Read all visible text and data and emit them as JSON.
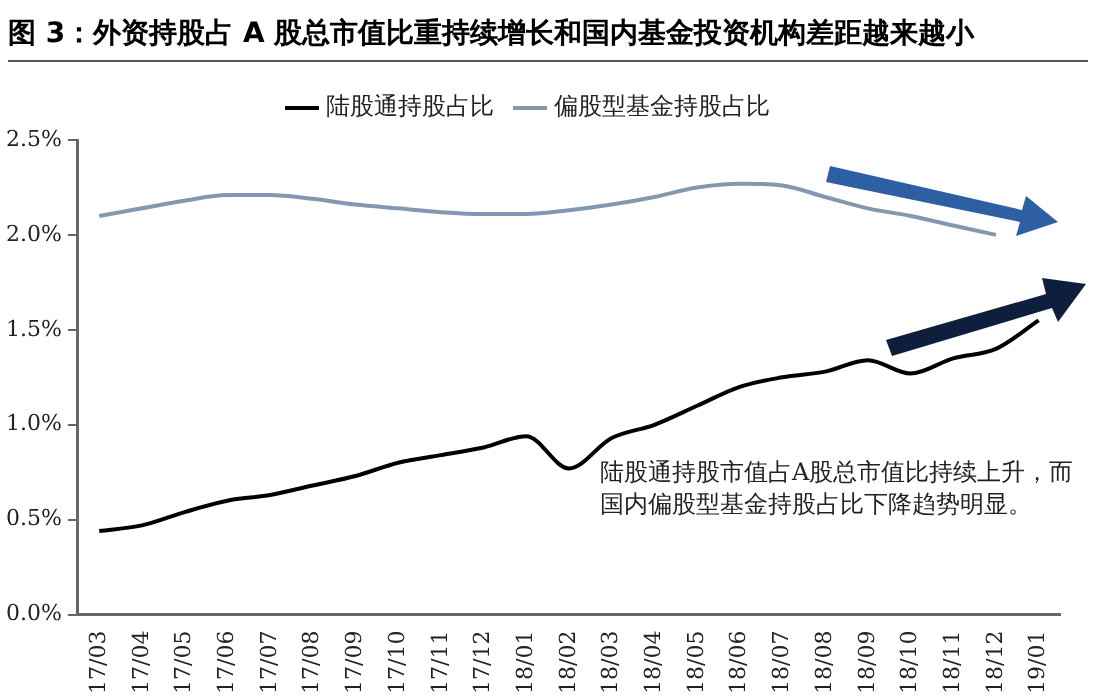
{
  "chart_data": {
    "type": "line",
    "title": "图 3：外资持股占 A 股总市值比重持续增长和国内基金投资机构差距越来越小",
    "categories": [
      "17/03",
      "17/04",
      "17/05",
      "17/06",
      "17/07",
      "17/08",
      "17/09",
      "17/10",
      "17/11",
      "17/12",
      "18/01",
      "18/02",
      "18/03",
      "18/04",
      "18/05",
      "18/06",
      "18/07",
      "18/08",
      "18/09",
      "18/10",
      "18/11",
      "18/12",
      "19/01"
    ],
    "series": [
      {
        "name": "陆股通持股占比",
        "color": "#000000",
        "values": [
          0.44,
          0.47,
          0.54,
          0.6,
          0.63,
          0.68,
          0.73,
          0.8,
          0.84,
          0.88,
          0.94,
          0.77,
          0.93,
          1.0,
          1.1,
          1.2,
          1.25,
          1.28,
          1.34,
          1.27,
          1.35,
          1.4,
          1.55
        ]
      },
      {
        "name": "偏股型基金持股占比",
        "color": "#8497b0",
        "values": [
          2.1,
          2.14,
          2.18,
          2.21,
          2.21,
          2.19,
          2.16,
          2.14,
          2.12,
          2.11,
          2.11,
          2.13,
          2.16,
          2.2,
          2.25,
          2.27,
          2.26,
          2.2,
          2.14,
          2.1,
          2.05,
          2.0,
          null
        ]
      }
    ],
    "ylim": [
      0,
      2.5
    ],
    "yticks": [
      {
        "value": 0,
        "label": "0.0%"
      },
      {
        "value": 0.5,
        "label": "0.5%"
      },
      {
        "value": 1,
        "label": "1.0%"
      },
      {
        "value": 1.5,
        "label": "1.5%"
      },
      {
        "value": 2,
        "label": "2.0%"
      },
      {
        "value": 2.5,
        "label": "2.5%"
      }
    ],
    "grid": false,
    "legend": "top",
    "marker": "none",
    "line_style": "solid",
    "annotations": [
      "陆股通持股市值占A股总市值比持续上升，而国内偏股型基金持股占比下降趋势明显。"
    ]
  }
}
